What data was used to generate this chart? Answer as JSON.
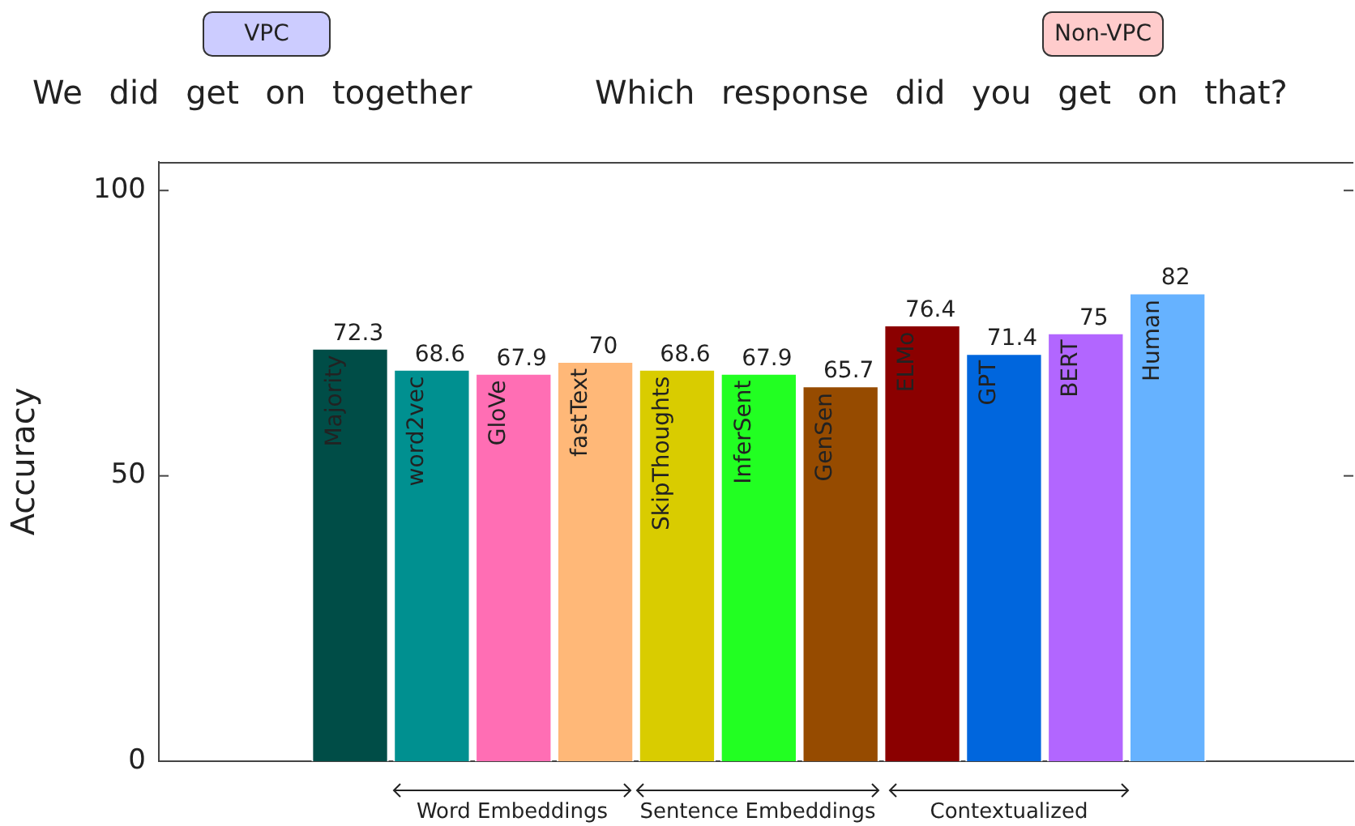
{
  "chart_data": {
    "type": "bar",
    "ylabel": "Accuracy",
    "categories": [
      "Majority",
      "word2vec",
      "GloVe",
      "fastText",
      "SkipThoughts",
      "InferSent",
      "GenSen",
      "ELMo",
      "GPT",
      "BERT",
      "Human"
    ],
    "values": [
      72.3,
      68.6,
      67.9,
      70,
      68.6,
      67.9,
      65.7,
      76.4,
      71.4,
      75,
      82
    ],
    "colors": [
      "#004d47",
      "#009090",
      "#ff6eb4",
      "#ffb878",
      "#d9cc00",
      "#22ff22",
      "#964b00",
      "#8b0000",
      "#0066dd",
      "#b266ff",
      "#66b2ff"
    ],
    "ylim": [
      0,
      105
    ],
    "yticks": [
      0,
      50,
      100
    ],
    "grid": false,
    "legend": false,
    "data_labels": true,
    "annotations": [
      "VPC",
      "We did get on together",
      "Non-VPC",
      "Which response did you get on that?",
      "Word Embeddings",
      "Sentence Embeddings",
      "Contextualized"
    ]
  }
}
